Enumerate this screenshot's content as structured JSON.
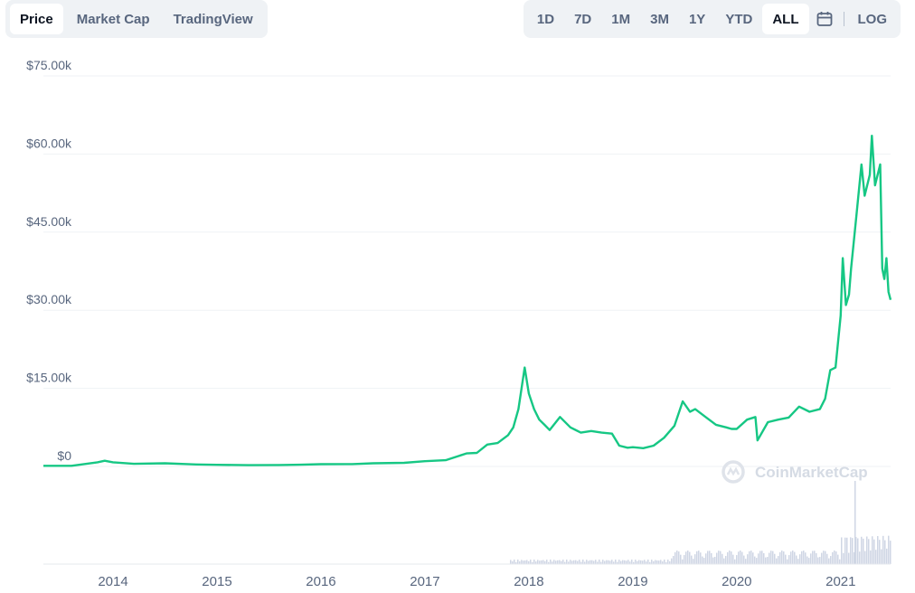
{
  "tabs": [
    {
      "label": "Price",
      "active": true
    },
    {
      "label": "Market Cap",
      "active": false
    },
    {
      "label": "TradingView",
      "active": false
    }
  ],
  "ranges": [
    {
      "label": "1D",
      "active": false
    },
    {
      "label": "7D",
      "active": false
    },
    {
      "label": "1M",
      "active": false
    },
    {
      "label": "3M",
      "active": false
    },
    {
      "label": "1Y",
      "active": false
    },
    {
      "label": "YTD",
      "active": false
    },
    {
      "label": "ALL",
      "active": true
    }
  ],
  "calendar_icon": "calendar-icon",
  "log_label": "LOG",
  "watermark": "CoinMarketCap",
  "colors": {
    "line": "#16c784",
    "volume": "#cfd6e4",
    "grid": "#eff2f5",
    "axis_text": "#58667e"
  },
  "chart_data": {
    "type": "line",
    "x_tick_labels": [
      "2014",
      "2015",
      "2016",
      "2017",
      "2018",
      "2019",
      "2020",
      "2021"
    ],
    "y_tick_labels": [
      "$0",
      "$15.00k",
      "$30.00k",
      "$45.00k",
      "$60.00k",
      "$75.00k"
    ],
    "ylim": [
      0,
      75000
    ],
    "xlim": [
      2013.33,
      2021.48
    ],
    "series": [
      {
        "x": [
          2013.33,
          2013.6,
          2013.85,
          2013.92,
          2014.0,
          2014.2,
          2014.5,
          2014.8,
          2015.0,
          2015.3,
          2015.6,
          2015.8,
          2016.0,
          2016.3,
          2016.5,
          2016.8,
          2017.0,
          2017.2,
          2017.4,
          2017.5,
          2017.6,
          2017.7,
          2017.8,
          2017.85,
          2017.9,
          2017.96,
          2018.0,
          2018.05,
          2018.1,
          2018.15,
          2018.2,
          2018.3,
          2018.4,
          2018.5,
          2018.6,
          2018.7,
          2018.8,
          2018.87,
          2018.95,
          2019.0,
          2019.1,
          2019.2,
          2019.3,
          2019.4,
          2019.48,
          2019.55,
          2019.6,
          2019.7,
          2019.8,
          2019.9,
          2019.95,
          2020.0,
          2020.1,
          2020.18,
          2020.2,
          2020.3,
          2020.4,
          2020.5,
          2020.6,
          2020.7,
          2020.8,
          2020.85,
          2020.9,
          2020.95,
          2021.0,
          2021.02,
          2021.05,
          2021.08,
          2021.1,
          2021.15,
          2021.2,
          2021.23,
          2021.28,
          2021.3,
          2021.33,
          2021.38,
          2021.4,
          2021.42,
          2021.44,
          2021.46,
          2021.48
        ],
        "y": [
          120,
          130,
          800,
          1100,
          800,
          500,
          600,
          380,
          320,
          250,
          280,
          330,
          430,
          450,
          600,
          700,
          1000,
          1200,
          2500,
          2600,
          4200,
          4500,
          6000,
          7500,
          11000,
          19000,
          14000,
          11000,
          9000,
          8000,
          7000,
          9500,
          7500,
          6500,
          6800,
          6500,
          6300,
          4000,
          3600,
          3700,
          3500,
          4000,
          5500,
          7800,
          12500,
          10500,
          11000,
          9500,
          8000,
          7500,
          7200,
          7200,
          9000,
          9500,
          5000,
          8500,
          9000,
          9400,
          11500,
          10500,
          11000,
          13000,
          18500,
          19000,
          29000,
          40000,
          31000,
          33000,
          38000,
          48000,
          58000,
          52000,
          56000,
          63500,
          54000,
          58000,
          38000,
          36000,
          40000,
          33500,
          32000
        ]
      }
    ]
  }
}
